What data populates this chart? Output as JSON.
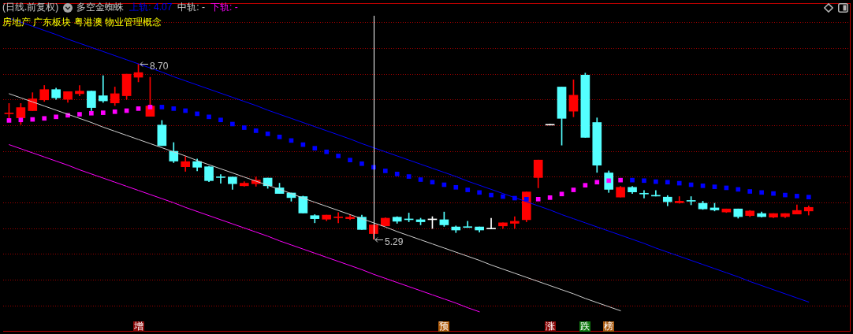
{
  "chart_data": {
    "type": "candlestick",
    "title": "(日线.前复权)",
    "subtitle": "房地产 广东板块 粤港澳 物业管理概念",
    "legend_title": "多空金蜘蛛",
    "categories": [
      null,
      null,
      null,
      null,
      null,
      null,
      null,
      null,
      null,
      null,
      null,
      null,
      null,
      null,
      null,
      null,
      null,
      null,
      null,
      null,
      null,
      null,
      null,
      null,
      null,
      null,
      null,
      null,
      null,
      null,
      null,
      null,
      null,
      null,
      null,
      null,
      null,
      null,
      null,
      null,
      null,
      null,
      null,
      null,
      null,
      null,
      null,
      null,
      null,
      null,
      null,
      null,
      null,
      null,
      null,
      null,
      null,
      null,
      null,
      null,
      null,
      null,
      null,
      null,
      null,
      null,
      null,
      null,
      null
    ],
    "ohlc": [
      [
        7.73,
        7.93,
        7.6,
        7.73
      ],
      [
        7.65,
        7.93,
        7.52,
        7.85
      ],
      [
        7.79,
        8.14,
        7.79,
        8.02
      ],
      [
        8.0,
        8.28,
        7.97,
        8.2
      ],
      [
        8.2,
        8.23,
        8.01,
        8.04
      ],
      [
        8.01,
        8.16,
        7.95,
        8.16
      ],
      [
        8.12,
        8.28,
        8.08,
        8.17
      ],
      [
        8.17,
        8.17,
        7.79,
        7.85
      ],
      [
        8.08,
        8.47,
        7.95,
        7.98
      ],
      [
        7.94,
        8.25,
        7.89,
        8.12
      ],
      [
        8.08,
        8.5,
        8.01,
        8.5
      ],
      [
        8.44,
        8.7,
        8.35,
        8.53
      ],
      [
        7.68,
        8.44,
        7.68,
        7.88
      ],
      [
        7.51,
        7.6,
        7.11,
        7.11
      ],
      [
        7.0,
        7.17,
        6.78,
        6.81
      ],
      [
        6.7,
        6.9,
        6.61,
        6.8
      ],
      [
        6.8,
        6.85,
        6.62,
        6.69
      ],
      [
        6.7,
        6.71,
        6.41,
        6.43
      ],
      [
        6.49,
        6.55,
        6.38,
        6.49
      ],
      [
        6.5,
        6.5,
        6.26,
        6.37
      ],
      [
        6.33,
        6.41,
        6.32,
        6.38
      ],
      [
        6.37,
        6.5,
        6.32,
        6.44
      ],
      [
        6.48,
        6.48,
        6.28,
        6.33
      ],
      [
        6.29,
        6.38,
        6.18,
        6.18
      ],
      [
        6.19,
        6.19,
        6.03,
        6.1
      ],
      [
        6.12,
        6.13,
        5.8,
        5.8
      ],
      [
        5.75,
        5.77,
        5.61,
        5.69
      ],
      [
        5.68,
        5.76,
        5.65,
        5.76
      ],
      [
        5.71,
        5.81,
        5.61,
        5.71
      ],
      [
        5.69,
        5.77,
        5.67,
        5.72
      ],
      [
        5.72,
        5.76,
        5.48,
        5.48
      ],
      [
        5.4,
        5.57,
        5.29,
        5.57
      ],
      [
        5.55,
        5.71,
        5.55,
        5.7
      ],
      [
        5.72,
        5.73,
        5.6,
        5.64
      ],
      [
        5.67,
        5.8,
        5.63,
        5.67
      ],
      [
        5.67,
        5.7,
        5.57,
        5.63
      ],
      [
        5.67,
        5.73,
        5.5,
        5.67
      ],
      [
        5.67,
        5.82,
        5.54,
        5.57
      ],
      [
        5.53,
        5.55,
        5.42,
        5.47
      ],
      [
        5.52,
        5.64,
        5.52,
        5.52
      ],
      [
        5.53,
        5.53,
        5.43,
        5.47
      ],
      [
        5.49,
        5.7,
        5.49,
        5.49
      ],
      [
        5.55,
        5.61,
        5.5,
        5.61
      ],
      [
        5.6,
        5.73,
        5.5,
        5.64
      ],
      [
        5.67,
        6.21,
        5.63,
        6.21
      ],
      [
        6.49,
        6.83,
        6.29,
        6.83
      ],
      [
        7.51,
        7.51,
        7.51,
        7.51
      ],
      [
        8.25,
        8.25,
        7.12,
        7.64
      ],
      [
        7.78,
        8.39,
        7.67,
        8.09
      ],
      [
        8.48,
        8.52,
        7.27,
        7.27
      ],
      [
        7.56,
        7.65,
        6.59,
        6.73
      ],
      [
        6.58,
        6.62,
        6.2,
        6.26
      ],
      [
        6.11,
        6.32,
        6.11,
        6.3
      ],
      [
        6.3,
        6.32,
        6.18,
        6.21
      ],
      [
        6.17,
        6.24,
        6.09,
        6.17
      ],
      [
        6.13,
        6.24,
        6.13,
        6.13
      ],
      [
        6.11,
        6.14,
        5.94,
        6.02
      ],
      [
        6.0,
        6.12,
        5.99,
        6.03
      ],
      [
        6.03,
        6.12,
        5.96,
        6.03
      ],
      [
        5.99,
        6.03,
        5.87,
        5.88
      ],
      [
        5.9,
        5.99,
        5.84,
        5.86
      ],
      [
        5.82,
        5.88,
        5.81,
        5.88
      ],
      [
        5.88,
        5.88,
        5.7,
        5.73
      ],
      [
        5.75,
        5.85,
        5.73,
        5.84
      ],
      [
        5.79,
        5.82,
        5.72,
        5.73
      ],
      [
        5.72,
        5.79,
        5.71,
        5.79
      ],
      [
        5.73,
        5.79,
        5.71,
        5.79
      ],
      [
        5.78,
        5.96,
        5.78,
        5.85
      ],
      [
        5.84,
        5.94,
        5.76,
        5.91
      ]
    ],
    "colors": [
      "#ff0000",
      "#ff0000",
      "#ff0000",
      "#ff0000",
      "#54ffff",
      "#ff0000",
      "#ff0000",
      "#54ffff",
      "#54ffff",
      "#ff0000",
      "#ff0000",
      "#ff0000",
      "#ff0000",
      "#54ffff",
      "#54ffff",
      "#ff0000",
      "#54ffff",
      "#54ffff",
      "#54ffff",
      "#54ffff",
      "#ff0000",
      "#ff0000",
      "#54ffff",
      "#54ffff",
      "#54ffff",
      "#54ffff",
      "#54ffff",
      "#ff0000",
      "#ff0000",
      "#ff0000",
      "#54ffff",
      "#ff0000",
      "#ff0000",
      "#54ffff",
      "#54ffff",
      "#54ffff",
      "#ffffff",
      "#54ffff",
      "#54ffff",
      "#54ffff",
      "#54ffff",
      "#ffffff",
      "#ff0000",
      "#ff0000",
      "#ff0000",
      "#ff0000",
      "#ffffff",
      "#54ffff",
      "#ff0000",
      "#54ffff",
      "#54ffff",
      "#54ffff",
      "#ff0000",
      "#54ffff",
      "#54ffff",
      "#54ffff",
      "#54ffff",
      "#ff0000",
      "#54ffff",
      "#54ffff",
      "#54ffff",
      "#ff0000",
      "#54ffff",
      "#ff0000",
      "#54ffff",
      "#ff0000",
      "#ff0000",
      "#ff0000",
      "#ff0000"
    ],
    "series": [
      {
        "name": "上轨: 4.07",
        "type": "line",
        "color": "#0000ff",
        "values": [
          9.59,
          9.51,
          9.43,
          9.35,
          9.27,
          9.18,
          9.1,
          9.02,
          8.94,
          8.86,
          8.78,
          8.7,
          8.62,
          8.54,
          8.45,
          8.37,
          8.29,
          8.21,
          8.13,
          8.05,
          7.97,
          7.89,
          7.8,
          7.72,
          7.64,
          7.56,
          7.48,
          7.4,
          7.32,
          7.24,
          7.15,
          7.07,
          6.99,
          6.91,
          6.83,
          6.75,
          6.67,
          6.59,
          6.51,
          6.42,
          6.34,
          6.26,
          6.18,
          6.1,
          6.02,
          5.94,
          5.86,
          5.77,
          5.69,
          5.61,
          5.53,
          5.45,
          5.37,
          5.29,
          5.21,
          5.12,
          5.04,
          4.96,
          4.88,
          4.8,
          4.72,
          4.64,
          4.56,
          4.47,
          4.39,
          4.31,
          4.23,
          4.15,
          4.07
        ]
      },
      {
        "name": "中轨: -",
        "type": "line",
        "color": "#d0d0d0",
        "values": [
          8.12,
          8.04,
          7.96,
          7.88,
          7.8,
          7.72,
          7.64,
          7.56,
          7.47,
          7.39,
          7.31,
          7.23,
          7.15,
          7.07,
          6.99,
          6.91,
          6.82,
          6.74,
          6.66,
          6.58,
          6.5,
          6.42,
          6.34,
          6.26,
          6.18,
          6.09,
          6.01,
          5.93,
          5.85,
          5.77,
          5.69,
          5.61,
          5.53,
          5.44,
          5.36,
          5.28,
          5.2,
          5.12,
          5.04,
          4.96,
          4.88,
          4.79,
          4.71,
          4.63,
          4.55,
          4.47,
          4.39,
          4.31,
          4.23,
          4.14,
          4.06,
          3.98,
          3.9,
          null,
          null,
          null,
          null,
          null,
          null,
          null,
          null,
          null,
          null,
          null,
          null,
          null,
          null,
          null,
          null
        ]
      },
      {
        "name": "下轨: -",
        "type": "line",
        "color": "#ff00ff",
        "values": [
          7.13,
          7.05,
          6.97,
          6.89,
          6.81,
          6.73,
          6.64,
          6.56,
          6.48,
          6.4,
          6.32,
          6.24,
          6.16,
          6.08,
          6.0,
          5.91,
          5.83,
          5.75,
          5.67,
          5.59,
          5.51,
          5.43,
          5.35,
          5.26,
          5.18,
          5.1,
          5.02,
          4.94,
          4.86,
          4.78,
          4.7,
          4.61,
          4.53,
          4.45,
          4.37,
          4.29,
          4.21,
          4.13,
          4.05,
          3.96,
          3.88,
          null,
          null,
          null,
          null,
          null,
          null,
          null,
          null,
          null,
          null,
          null,
          null,
          null,
          null,
          null,
          null,
          null,
          null,
          null,
          null,
          null,
          null,
          null,
          null,
          null,
          null,
          null,
          null
        ]
      },
      {
        "type": "scatter",
        "marker": "square",
        "color": "#ff00ff",
        "values": [
          7.6,
          7.61,
          7.62,
          7.64,
          7.67,
          7.7,
          7.72,
          7.74,
          7.75,
          7.77,
          7.79,
          7.83,
          7.86,
          null,
          null,
          null,
          null,
          null,
          null,
          null,
          null,
          null,
          null,
          null,
          null,
          null,
          null,
          null,
          null,
          null,
          null,
          null,
          null,
          null,
          null,
          null,
          null,
          null,
          null,
          null,
          null,
          null,
          null,
          null,
          null,
          6.07,
          6.1,
          6.17,
          6.25,
          6.34,
          6.4,
          6.43,
          6.44,
          null,
          null,
          null,
          null,
          null,
          null,
          null,
          null,
          null,
          null,
          null,
          null,
          null,
          null,
          null,
          null
        ]
      },
      {
        "type": "scatter",
        "marker": "square",
        "color": "#0000ff",
        "values": [
          null,
          null,
          null,
          null,
          null,
          null,
          null,
          null,
          null,
          null,
          null,
          null,
          null,
          7.86,
          7.83,
          7.79,
          7.73,
          7.67,
          7.61,
          7.53,
          7.46,
          7.4,
          7.34,
          7.28,
          7.21,
          7.13,
          7.06,
          6.99,
          6.91,
          6.83,
          6.76,
          6.69,
          6.62,
          6.56,
          6.51,
          6.45,
          6.4,
          6.35,
          6.3,
          6.25,
          6.2,
          6.15,
          6.12,
          6.09,
          6.07,
          null,
          null,
          null,
          null,
          null,
          null,
          null,
          null,
          6.44,
          6.43,
          6.41,
          6.4,
          6.38,
          6.35,
          6.33,
          6.31,
          6.29,
          6.26,
          6.22,
          6.2,
          6.18,
          6.15,
          6.13,
          6.11
        ]
      }
    ],
    "ylim": [
      3.51,
      9.88
    ],
    "yticks": [
      {
        "value": 4.0,
        "label": null
      },
      {
        "value": 4.5,
        "label": null
      },
      {
        "value": 5.0,
        "label": null
      },
      {
        "value": 5.5,
        "label": null
      },
      {
        "value": 6.0,
        "label": null
      },
      {
        "value": 6.5,
        "label": null
      },
      {
        "value": 7.0,
        "label": null
      },
      {
        "value": 7.5,
        "label": null
      },
      {
        "value": 8.0,
        "label": null
      },
      {
        "value": 8.5,
        "label": null
      },
      {
        "value": 9.0,
        "label": null
      },
      {
        "value": 9.5,
        "label": null
      }
    ],
    "grid": "y",
    "legend": "top left",
    "tick_labels": false,
    "annotations": [
      "8.70",
      "5.29",
      "增",
      "预",
      "涨",
      "跌",
      "榜"
    ]
  }
}
